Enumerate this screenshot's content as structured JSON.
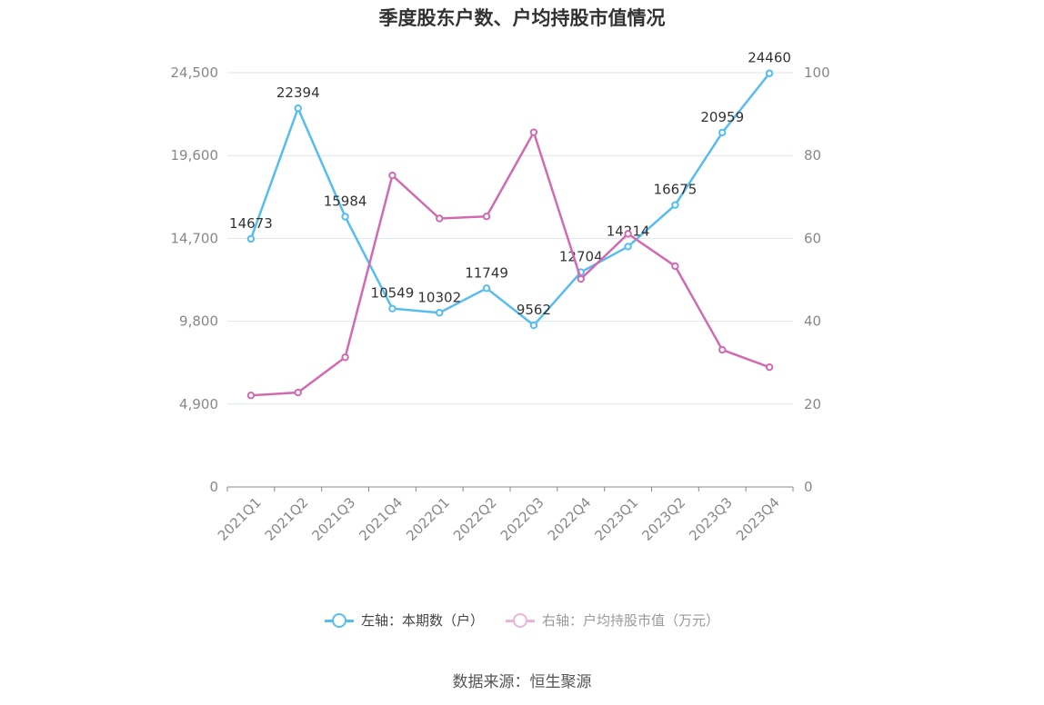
{
  "chart_data": {
    "type": "line",
    "title": "季度股东户数、户均持股市值情况",
    "categories": [
      "2021Q1",
      "2021Q2",
      "2021Q3",
      "2021Q4",
      "2022Q1",
      "2022Q2",
      "2022Q3",
      "2022Q4",
      "2023Q1",
      "2023Q2",
      "2023Q3",
      "2023Q4"
    ],
    "left_axis": {
      "ticks": [
        "0",
        "4,900",
        "9,800",
        "14,700",
        "19,600",
        "24,500"
      ],
      "range": [
        0,
        24500
      ]
    },
    "right_axis": {
      "ticks": [
        "0",
        "20",
        "40",
        "60",
        "80",
        "100"
      ],
      "range": [
        0,
        100
      ]
    },
    "series": [
      {
        "name": "左轴：本期数（户）",
        "axis": "left",
        "color": "#56bdf0",
        "values": [
          14673,
          22394,
          15984,
          10549,
          10302,
          11749,
          9562,
          12704,
          14214,
          16675,
          20959,
          24460
        ],
        "labels": [
          "14673",
          "22394",
          "15984",
          "10549",
          "10302",
          "11749",
          "9562",
          "12704",
          "14214",
          "16675",
          "20959",
          "24460"
        ]
      },
      {
        "name": "右轴：户均持股市值（万元）",
        "axis": "right",
        "color": "#d16bb0",
        "values": [
          22.1,
          22.8,
          31.3,
          75.2,
          64.8,
          65.3,
          85.6,
          50.2,
          61.1,
          53.3,
          33.1,
          28.9
        ]
      }
    ],
    "grid": true,
    "legend_position": "bottom"
  },
  "source": "数据来源：恒生聚源"
}
